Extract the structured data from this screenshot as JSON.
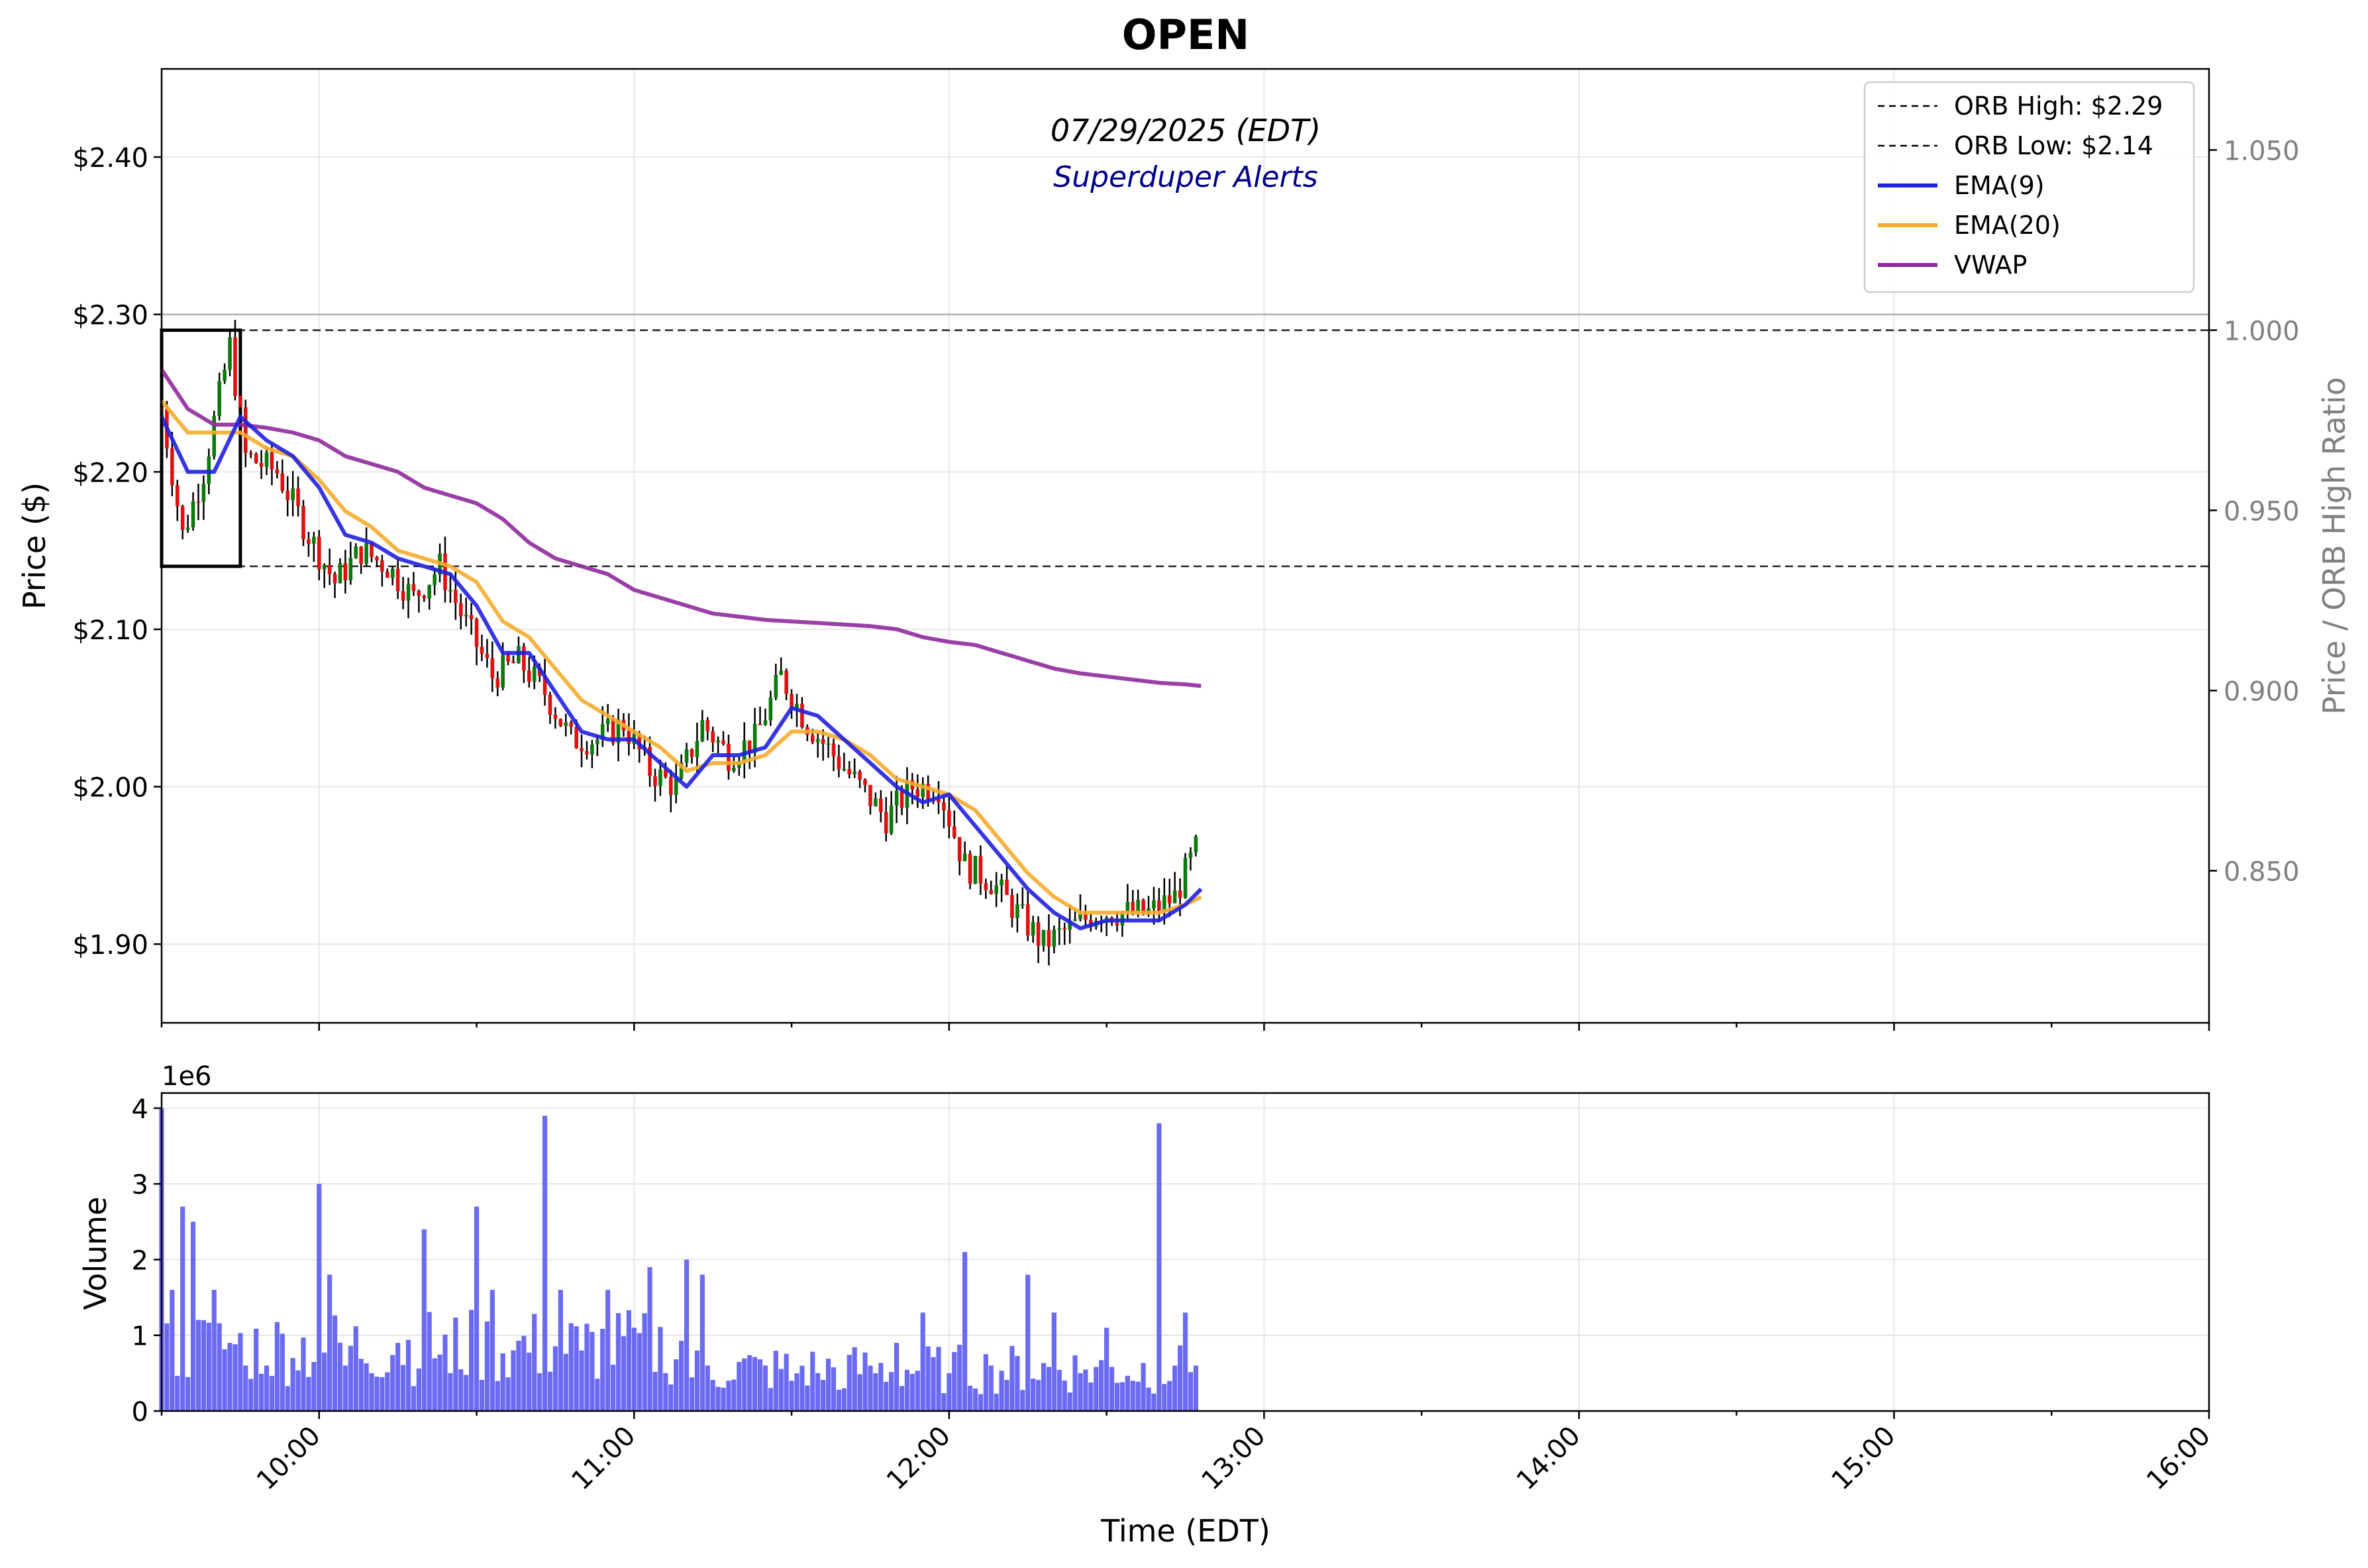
{
  "chart_data": [
    {
      "type": "candlestick",
      "title": "OPEN",
      "subtitle": "07/29/2025 (EDT)",
      "subtitle2": "Superduper Alerts",
      "ylabel": "Price ($)",
      "ylabel_right": "Price / ORB High Ratio",
      "ylim": [
        1.85,
        2.456
      ],
      "ylim_right": [
        0.8078,
        1.0725
      ],
      "yticks": [
        "$1.90",
        "$2.00",
        "$2.10",
        "$2.20",
        "$2.30",
        "$2.40"
      ],
      "yticks_right": [
        "0.850",
        "0.900",
        "0.950",
        "1.000",
        "1.050"
      ],
      "x_range": [
        "09:30",
        "16:00"
      ],
      "grid": true,
      "legend_position": "top-right",
      "legend": [
        {
          "label": "ORB High: $2.29",
          "color": "#000000",
          "style": "dashed"
        },
        {
          "label": "ORB Low: $2.14",
          "color": "#000000",
          "style": "dashed"
        },
        {
          "label": "EMA(9)",
          "color": "#2020e0",
          "style": "solid"
        },
        {
          "label": "EMA(20)",
          "color": "#f5ac2f",
          "style": "solid"
        },
        {
          "label": "VWAP",
          "color": "#8e2a9c",
          "style": "solid"
        }
      ],
      "orb": {
        "high": 2.29,
        "low": 2.14,
        "start": "09:30",
        "end": "09:45"
      },
      "reference_line": 2.3,
      "candles_anchor": [
        [
          "09:30",
          2.24
        ],
        [
          "09:34",
          2.16
        ],
        [
          "09:38",
          2.2
        ],
        [
          "09:43",
          2.28
        ],
        [
          "09:46",
          2.21
        ],
        [
          "09:52",
          2.2
        ],
        [
          "09:58",
          2.16
        ],
        [
          "10:03",
          2.13
        ],
        [
          "10:08",
          2.15
        ],
        [
          "10:13",
          2.14
        ],
        [
          "10:18",
          2.12
        ],
        [
          "10:23",
          2.14
        ],
        [
          "10:27",
          2.11
        ],
        [
          "10:33",
          2.07
        ],
        [
          "10:38",
          2.08
        ],
        [
          "10:43",
          2.06
        ],
        [
          "10:48",
          2.03
        ],
        [
          "10:53",
          2.03
        ],
        [
          "10:58",
          2.04
        ],
        [
          "11:03",
          2.01
        ],
        [
          "11:08",
          2.0
        ],
        [
          "11:13",
          2.04
        ],
        [
          "11:18",
          2.02
        ],
        [
          "11:23",
          2.03
        ],
        [
          "11:28",
          2.07
        ],
        [
          "11:33",
          2.04
        ],
        [
          "11:38",
          2.02
        ],
        [
          "11:43",
          2.0
        ],
        [
          "11:48",
          1.98
        ],
        [
          "11:53",
          2.0
        ],
        [
          "11:58",
          2.0
        ],
        [
          "12:03",
          1.95
        ],
        [
          "12:08",
          1.94
        ],
        [
          "12:13",
          1.92
        ],
        [
          "12:18",
          1.9
        ],
        [
          "12:23",
          1.91
        ],
        [
          "12:28",
          1.92
        ],
        [
          "12:33",
          1.92
        ],
        [
          "12:38",
          1.92
        ],
        [
          "12:43",
          1.93
        ],
        [
          "12:47",
          1.96
        ]
      ],
      "ema9": [
        [
          "09:30",
          2.235
        ],
        [
          "09:35",
          2.2
        ],
        [
          "09:40",
          2.2
        ],
        [
          "09:45",
          2.235
        ],
        [
          "09:50",
          2.22
        ],
        [
          "09:55",
          2.21
        ],
        [
          "10:00",
          2.19
        ],
        [
          "10:05",
          2.16
        ],
        [
          "10:10",
          2.155
        ],
        [
          "10:15",
          2.145
        ],
        [
          "10:20",
          2.14
        ],
        [
          "10:25",
          2.135
        ],
        [
          "10:30",
          2.115
        ],
        [
          "10:35",
          2.085
        ],
        [
          "10:40",
          2.085
        ],
        [
          "10:45",
          2.06
        ],
        [
          "10:50",
          2.035
        ],
        [
          "10:55",
          2.03
        ],
        [
          "11:00",
          2.03
        ],
        [
          "11:05",
          2.015
        ],
        [
          "11:10",
          2.0
        ],
        [
          "11:15",
          2.02
        ],
        [
          "11:20",
          2.02
        ],
        [
          "11:25",
          2.025
        ],
        [
          "11:30",
          2.05
        ],
        [
          "11:35",
          2.045
        ],
        [
          "11:40",
          2.03
        ],
        [
          "11:45",
          2.015
        ],
        [
          "11:50",
          2.0
        ],
        [
          "11:55",
          1.99
        ],
        [
          "12:00",
          1.995
        ],
        [
          "12:05",
          1.975
        ],
        [
          "12:10",
          1.955
        ],
        [
          "12:15",
          1.935
        ],
        [
          "12:20",
          1.92
        ],
        [
          "12:25",
          1.91
        ],
        [
          "12:30",
          1.915
        ],
        [
          "12:35",
          1.915
        ],
        [
          "12:40",
          1.915
        ],
        [
          "12:45",
          1.925
        ],
        [
          "12:48",
          1.935
        ]
      ],
      "ema20": [
        [
          "09:30",
          2.245
        ],
        [
          "09:35",
          2.225
        ],
        [
          "09:40",
          2.225
        ],
        [
          "09:45",
          2.225
        ],
        [
          "09:50",
          2.215
        ],
        [
          "09:55",
          2.21
        ],
        [
          "10:00",
          2.195
        ],
        [
          "10:05",
          2.175
        ],
        [
          "10:10",
          2.165
        ],
        [
          "10:15",
          2.15
        ],
        [
          "10:20",
          2.145
        ],
        [
          "10:25",
          2.14
        ],
        [
          "10:30",
          2.13
        ],
        [
          "10:35",
          2.105
        ],
        [
          "10:40",
          2.095
        ],
        [
          "10:45",
          2.075
        ],
        [
          "10:50",
          2.055
        ],
        [
          "10:55",
          2.045
        ],
        [
          "11:00",
          2.035
        ],
        [
          "11:05",
          2.025
        ],
        [
          "11:10",
          2.01
        ],
        [
          "11:15",
          2.015
        ],
        [
          "11:20",
          2.015
        ],
        [
          "11:25",
          2.02
        ],
        [
          "11:30",
          2.035
        ],
        [
          "11:35",
          2.035
        ],
        [
          "11:40",
          2.03
        ],
        [
          "11:45",
          2.02
        ],
        [
          "11:50",
          2.005
        ],
        [
          "11:55",
          2.0
        ],
        [
          "12:00",
          1.995
        ],
        [
          "12:05",
          1.985
        ],
        [
          "12:10",
          1.965
        ],
        [
          "12:15",
          1.945
        ],
        [
          "12:20",
          1.93
        ],
        [
          "12:25",
          1.92
        ],
        [
          "12:30",
          1.92
        ],
        [
          "12:35",
          1.92
        ],
        [
          "12:40",
          1.92
        ],
        [
          "12:45",
          1.925
        ],
        [
          "12:48",
          1.93
        ]
      ],
      "vwap": [
        [
          "09:30",
          2.265
        ],
        [
          "09:35",
          2.24
        ],
        [
          "09:40",
          2.23
        ],
        [
          "09:45",
          2.23
        ],
        [
          "09:50",
          2.228
        ],
        [
          "09:55",
          2.225
        ],
        [
          "10:00",
          2.22
        ],
        [
          "10:05",
          2.21
        ],
        [
          "10:10",
          2.205
        ],
        [
          "10:15",
          2.2
        ],
        [
          "10:20",
          2.19
        ],
        [
          "10:25",
          2.185
        ],
        [
          "10:30",
          2.18
        ],
        [
          "10:35",
          2.17
        ],
        [
          "10:40",
          2.155
        ],
        [
          "10:45",
          2.145
        ],
        [
          "10:50",
          2.14
        ],
        [
          "10:55",
          2.135
        ],
        [
          "11:00",
          2.125
        ],
        [
          "11:05",
          2.12
        ],
        [
          "11:10",
          2.115
        ],
        [
          "11:15",
          2.11
        ],
        [
          "11:20",
          2.108
        ],
        [
          "11:25",
          2.106
        ],
        [
          "11:30",
          2.105
        ],
        [
          "11:35",
          2.104
        ],
        [
          "11:40",
          2.103
        ],
        [
          "11:45",
          2.102
        ],
        [
          "11:50",
          2.1
        ],
        [
          "11:55",
          2.095
        ],
        [
          "12:00",
          2.092
        ],
        [
          "12:05",
          2.09
        ],
        [
          "12:10",
          2.085
        ],
        [
          "12:15",
          2.08
        ],
        [
          "12:20",
          2.075
        ],
        [
          "12:25",
          2.072
        ],
        [
          "12:30",
          2.07
        ],
        [
          "12:35",
          2.068
        ],
        [
          "12:40",
          2.066
        ],
        [
          "12:45",
          2.065
        ],
        [
          "12:48",
          2.064
        ]
      ]
    },
    {
      "type": "bar",
      "ylabel": "Volume",
      "xlabel": "Time (EDT)",
      "offset_label": "1e6",
      "ylim": [
        0,
        4.2
      ],
      "yticks": [
        "0",
        "1",
        "2",
        "3",
        "4"
      ],
      "xticks": [
        "10:00",
        "11:00",
        "12:00",
        "13:00",
        "14:00",
        "15:00",
        "16:00"
      ],
      "grid": true,
      "color": "#5050f0",
      "volume_anchor_millions": [
        [
          "09:30",
          4.0
        ],
        [
          "09:32",
          1.6
        ],
        [
          "09:34",
          2.7
        ],
        [
          "09:36",
          2.5
        ],
        [
          "09:38",
          1.2
        ],
        [
          "09:40",
          1.6
        ],
        [
          "09:43",
          0.9
        ],
        [
          "09:46",
          0.6
        ],
        [
          "09:50",
          0.6
        ],
        [
          "09:55",
          0.7
        ],
        [
          "10:00",
          3.0
        ],
        [
          "10:02",
          1.8
        ],
        [
          "10:05",
          0.6
        ],
        [
          "10:10",
          0.5
        ],
        [
          "10:15",
          0.9
        ],
        [
          "10:20",
          2.4
        ],
        [
          "10:25",
          0.5
        ],
        [
          "10:30",
          2.7
        ],
        [
          "10:33",
          1.6
        ],
        [
          "10:37",
          0.8
        ],
        [
          "10:43",
          3.9
        ],
        [
          "10:46",
          1.6
        ],
        [
          "10:50",
          0.8
        ],
        [
          "10:55",
          1.6
        ],
        [
          "11:00",
          1.1
        ],
        [
          "11:03",
          1.9
        ],
        [
          "11:06",
          0.5
        ],
        [
          "11:10",
          2.0
        ],
        [
          "11:13",
          1.8
        ],
        [
          "11:18",
          0.4
        ],
        [
          "11:25",
          0.6
        ],
        [
          "11:30",
          0.4
        ],
        [
          "11:35",
          0.5
        ],
        [
          "11:40",
          0.3
        ],
        [
          "11:45",
          0.6
        ],
        [
          "11:50",
          0.9
        ],
        [
          "11:55",
          1.3
        ],
        [
          "12:00",
          0.5
        ],
        [
          "12:03",
          2.1
        ],
        [
          "12:08",
          0.6
        ],
        [
          "12:15",
          1.8
        ],
        [
          "12:20",
          1.3
        ],
        [
          "12:25",
          0.5
        ],
        [
          "12:30",
          1.1
        ],
        [
          "12:35",
          0.4
        ],
        [
          "12:40",
          3.8
        ],
        [
          "12:43",
          0.6
        ],
        [
          "12:45",
          1.3
        ],
        [
          "12:47",
          0.6
        ]
      ]
    }
  ]
}
